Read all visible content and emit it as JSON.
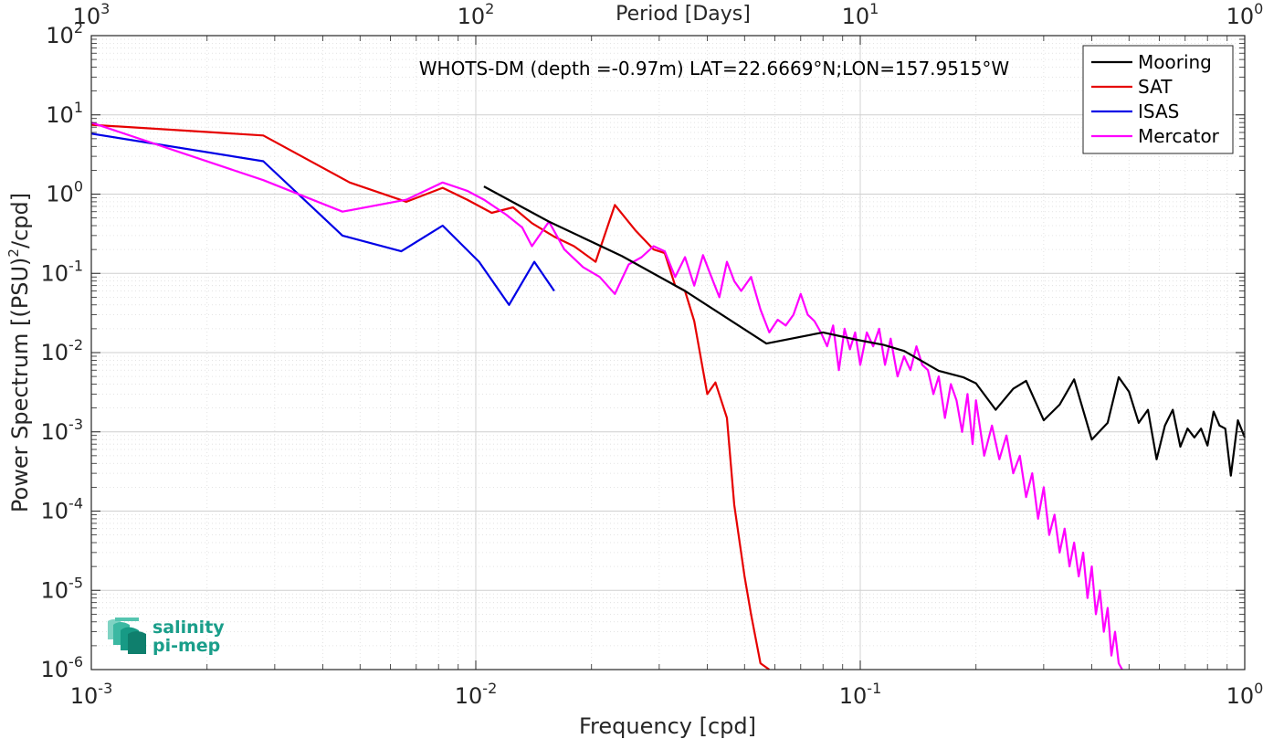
{
  "chart_data": {
    "type": "line",
    "title": "WHOTS-DM (depth =-0.97m) LAT=22.6669°N;LON=157.9515°W",
    "xlabel": "Frequency [cpd]",
    "ylabel": "Power Spectrum [(PSU)²/cpd]",
    "ylabel_main": "Power Spectrum [(PSU)",
    "ylabel_sup": "2",
    "ylabel_tail": "/cpd]",
    "top_xlabel": "Period [Days]",
    "xscale": "log",
    "yscale": "log",
    "xlim": [
      0.001,
      1
    ],
    "ylim": [
      1e-06,
      100
    ],
    "grid": true,
    "legend_position": "top-right",
    "x_ticks": [
      {
        "value": 0.001,
        "base": "10",
        "exp": "-3"
      },
      {
        "value": 0.01,
        "base": "10",
        "exp": "-2"
      },
      {
        "value": 0.1,
        "base": "10",
        "exp": "-1"
      },
      {
        "value": 1,
        "base": "10",
        "exp": "0"
      }
    ],
    "top_ticks": [
      {
        "value": 0.001,
        "base": "10",
        "exp": "3"
      },
      {
        "value": 0.01,
        "base": "10",
        "exp": "2"
      },
      {
        "value": 0.1,
        "base": "10",
        "exp": "1"
      },
      {
        "value": 1,
        "base": "10",
        "exp": "0"
      }
    ],
    "y_ticks": [
      {
        "value": 100,
        "base": "10",
        "exp": "2"
      },
      {
        "value": 10,
        "base": "10",
        "exp": "1"
      },
      {
        "value": 1,
        "base": "10",
        "exp": "0"
      },
      {
        "value": 0.1,
        "base": "10",
        "exp": "-1"
      },
      {
        "value": 0.01,
        "base": "10",
        "exp": "-2"
      },
      {
        "value": 0.001,
        "base": "10",
        "exp": "-3"
      },
      {
        "value": 0.0001,
        "base": "10",
        "exp": "-4"
      },
      {
        "value": 1e-05,
        "base": "10",
        "exp": "-5"
      },
      {
        "value": 1e-06,
        "base": "10",
        "exp": "-6"
      }
    ],
    "series": [
      {
        "name": "Mooring",
        "color": "#000000",
        "x": [
          0.0105,
          0.0155,
          0.024,
          0.035,
          0.057,
          0.08,
          0.098,
          0.115,
          0.13,
          0.16,
          0.185,
          0.2,
          0.225,
          0.25,
          0.27,
          0.3,
          0.33,
          0.36,
          0.4,
          0.44,
          0.47,
          0.5,
          0.53,
          0.56,
          0.59,
          0.62,
          0.65,
          0.68,
          0.71,
          0.74,
          0.77,
          0.8,
          0.83,
          0.86,
          0.89,
          0.92,
          0.96,
          1.0
        ],
        "y": [
          1.25,
          0.45,
          0.165,
          0.06,
          0.013,
          0.018,
          0.0145,
          0.0125,
          0.0105,
          0.0059,
          0.0049,
          0.0041,
          0.0019,
          0.0035,
          0.0044,
          0.0014,
          0.0022,
          0.0046,
          0.0008,
          0.0013,
          0.0049,
          0.0032,
          0.0013,
          0.0019,
          0.00045,
          0.0012,
          0.0019,
          0.00065,
          0.0011,
          0.00085,
          0.0011,
          0.00067,
          0.0018,
          0.0012,
          0.0011,
          0.00028,
          0.0014,
          0.00085
        ]
      },
      {
        "name": "SAT",
        "color": "#e60000",
        "x": [
          0.001,
          0.0028,
          0.0047,
          0.0066,
          0.0082,
          0.0095,
          0.011,
          0.0125,
          0.014,
          0.016,
          0.018,
          0.0205,
          0.023,
          0.026,
          0.029,
          0.031,
          0.033,
          0.035,
          0.037,
          0.04,
          0.042,
          0.045,
          0.047,
          0.05,
          0.052,
          0.055,
          0.058
        ],
        "y": [
          7.5,
          5.5,
          1.4,
          0.8,
          1.2,
          0.85,
          0.58,
          0.68,
          0.43,
          0.29,
          0.22,
          0.14,
          0.73,
          0.35,
          0.2,
          0.18,
          0.07,
          0.06,
          0.025,
          0.003,
          0.0042,
          0.0015,
          0.00012,
          1.5e-05,
          5e-06,
          1.2e-06,
          1e-06
        ]
      },
      {
        "name": "ISAS",
        "color": "#0000e6",
        "x": [
          0.001,
          0.0028,
          0.0045,
          0.0064,
          0.0082,
          0.0102,
          0.0122,
          0.0142,
          0.016
        ],
        "y": [
          5.8,
          2.6,
          0.3,
          0.19,
          0.4,
          0.14,
          0.04,
          0.14,
          0.06
        ]
      },
      {
        "name": "Mercator",
        "color": "#ff00ff",
        "x": [
          0.001,
          0.0028,
          0.0045,
          0.0066,
          0.0082,
          0.0095,
          0.0105,
          0.012,
          0.0132,
          0.014,
          0.0155,
          0.017,
          0.019,
          0.021,
          0.023,
          0.025,
          0.027,
          0.029,
          0.031,
          0.033,
          0.035,
          0.037,
          0.039,
          0.041,
          0.043,
          0.045,
          0.047,
          0.049,
          0.052,
          0.055,
          0.058,
          0.061,
          0.064,
          0.067,
          0.07,
          0.073,
          0.076,
          0.079,
          0.082,
          0.085,
          0.088,
          0.091,
          0.094,
          0.097,
          0.1,
          0.104,
          0.108,
          0.112,
          0.116,
          0.12,
          0.125,
          0.13,
          0.135,
          0.14,
          0.145,
          0.15,
          0.155,
          0.16,
          0.166,
          0.172,
          0.178,
          0.184,
          0.19,
          0.196,
          0.2,
          0.21,
          0.22,
          0.23,
          0.24,
          0.25,
          0.26,
          0.27,
          0.28,
          0.29,
          0.3,
          0.31,
          0.32,
          0.33,
          0.34,
          0.35,
          0.36,
          0.37,
          0.38,
          0.39,
          0.4,
          0.41,
          0.42,
          0.43,
          0.44,
          0.45,
          0.46,
          0.47,
          0.48
        ],
        "y": [
          8.0,
          1.5,
          0.6,
          0.85,
          1.4,
          1.1,
          0.85,
          0.55,
          0.38,
          0.22,
          0.45,
          0.2,
          0.12,
          0.09,
          0.055,
          0.13,
          0.16,
          0.22,
          0.19,
          0.09,
          0.16,
          0.07,
          0.17,
          0.09,
          0.05,
          0.14,
          0.08,
          0.06,
          0.09,
          0.035,
          0.018,
          0.026,
          0.022,
          0.03,
          0.055,
          0.03,
          0.025,
          0.018,
          0.012,
          0.022,
          0.006,
          0.02,
          0.011,
          0.018,
          0.007,
          0.018,
          0.012,
          0.02,
          0.007,
          0.015,
          0.005,
          0.009,
          0.006,
          0.012,
          0.007,
          0.006,
          0.003,
          0.005,
          0.0015,
          0.004,
          0.0025,
          0.001,
          0.003,
          0.0007,
          0.0025,
          0.0005,
          0.0012,
          0.00045,
          0.0009,
          0.0003,
          0.0005,
          0.00015,
          0.0003,
          8e-05,
          0.0002,
          5e-05,
          9e-05,
          3e-05,
          6e-05,
          2e-05,
          4e-05,
          1.5e-05,
          3e-05,
          8e-06,
          2e-05,
          5e-06,
          1e-05,
          3e-06,
          6e-06,
          1.5e-06,
          3e-06,
          1.2e-06,
          1e-06
        ]
      }
    ]
  },
  "logo": {
    "line1": "salinity",
    "line2": "pi-mep",
    "color": "#1a9e8a"
  }
}
